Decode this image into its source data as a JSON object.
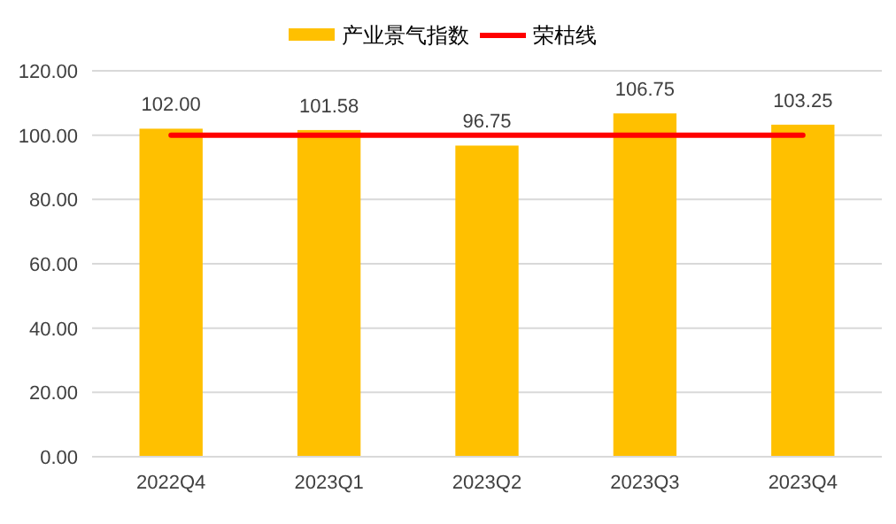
{
  "chart_data": {
    "type": "bar",
    "categories": [
      "2022Q4",
      "2023Q1",
      "2023Q2",
      "2023Q3",
      "2023Q4"
    ],
    "series": [
      {
        "name": "产业景气指数",
        "color": "#ffc000",
        "values": [
          102.0,
          101.58,
          96.75,
          106.75,
          103.25
        ],
        "value_labels": [
          "102.00",
          "101.58",
          "96.75",
          "106.75",
          "103.25"
        ]
      },
      {
        "name": "荣枯线",
        "type": "line",
        "color": "#ff0000",
        "values": [
          100,
          100,
          100,
          100,
          100
        ]
      }
    ],
    "ylim": [
      0,
      120
    ],
    "yticks": [
      {
        "value": 0,
        "label": "0.00"
      },
      {
        "value": 20,
        "label": "20.00"
      },
      {
        "value": 40,
        "label": "40.00"
      },
      {
        "value": 60,
        "label": "60.00"
      },
      {
        "value": 80,
        "label": "80.00"
      },
      {
        "value": 100,
        "label": "100.00"
      },
      {
        "value": 120,
        "label": "120.00"
      }
    ],
    "grid": "y",
    "legend": "top",
    "marker": "none",
    "line_style": "solid"
  }
}
